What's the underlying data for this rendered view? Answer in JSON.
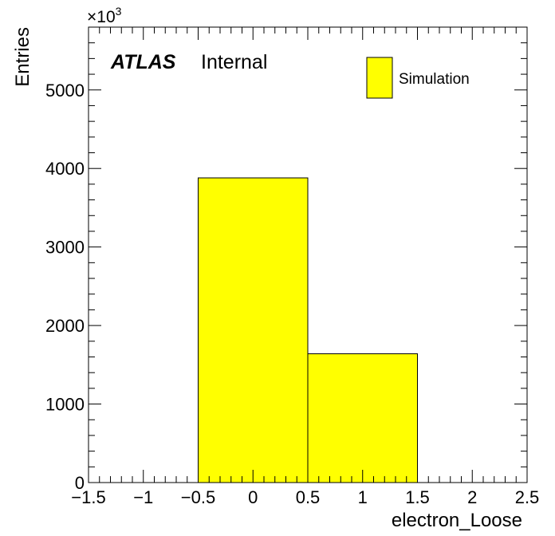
{
  "chart_data": {
    "type": "bar",
    "histogram": true,
    "bin_edges": [
      -1.5,
      -0.5,
      0.5,
      1.5,
      2.5
    ],
    "bins": [
      {
        "low": -0.5,
        "high": 0.5,
        "value": 3880
      },
      {
        "low": 0.5,
        "high": 1.5,
        "value": 1640
      }
    ],
    "xlabel": "electron_Loose",
    "ylabel": "Entries",
    "y_multiplier": "×10",
    "y_multiplier_exp": "3",
    "xlim": [
      -1.5,
      2.5
    ],
    "ylim": [
      0,
      5800
    ],
    "x_ticks": [
      -1.5,
      -1,
      -0.5,
      0,
      0.5,
      1,
      1.5,
      2,
      2.5
    ],
    "x_tick_labels": [
      "−1.5",
      "−1",
      "−0.5",
      "0",
      "0.5",
      "1",
      "1.5",
      "2",
      "2.5"
    ],
    "y_ticks": [
      0,
      1000,
      2000,
      3000,
      4000,
      5000
    ],
    "y_tick_labels": [
      "0",
      "1000",
      "2000",
      "3000",
      "4000",
      "5000"
    ],
    "grid": false,
    "legend": {
      "position": "top-right",
      "entries": [
        {
          "name": "Simulation",
          "color": "#ffff00"
        }
      ]
    },
    "annotation": {
      "bold": "ATLAS",
      "normal": "Internal"
    },
    "colors": {
      "fill": "#ffff00",
      "edge": "#000000"
    }
  }
}
